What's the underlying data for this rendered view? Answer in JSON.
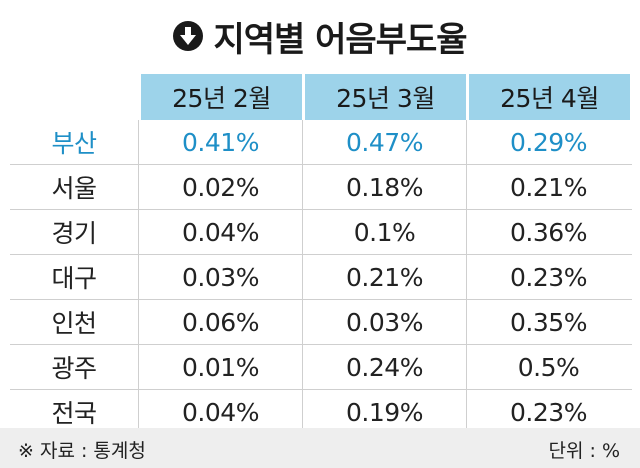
{
  "chart_data": {
    "type": "table",
    "title": "지역별 어음부도율",
    "title_icon": "down-arrow-circle-icon",
    "columns": [
      "25년 2월",
      "25년 3월",
      "25년 4월"
    ],
    "rows": [
      {
        "region": "부산",
        "values": [
          "0.41%",
          "0.47%",
          "0.29%"
        ],
        "highlight": true
      },
      {
        "region": "서울",
        "values": [
          "0.02%",
          "0.18%",
          "0.21%"
        ]
      },
      {
        "region": "경기",
        "values": [
          "0.04%",
          "0.1%",
          "0.36%"
        ]
      },
      {
        "region": "대구",
        "values": [
          "0.03%",
          "0.21%",
          "0.23%"
        ]
      },
      {
        "region": "인천",
        "values": [
          "0.06%",
          "0.03%",
          "0.35%"
        ]
      },
      {
        "region": "광주",
        "values": [
          "0.01%",
          "0.24%",
          "0.5%"
        ]
      },
      {
        "region": "전국",
        "values": [
          "0.04%",
          "0.19%",
          "0.23%"
        ]
      }
    ],
    "source": "※ 자료 : 통계청",
    "unit": "단위 : %",
    "colors": {
      "header_bg": "#9dd3ea",
      "highlight_text": "#1e8fc7",
      "footer_bg": "#eeeeee"
    }
  }
}
